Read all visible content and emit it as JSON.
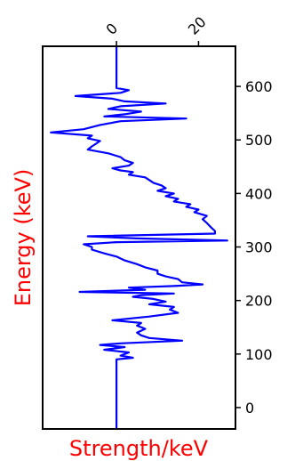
{
  "chart_data": {
    "type": "line",
    "orientation": "vertical",
    "title": "",
    "xlabel": "Strength/keV",
    "ylabel": "Energy (keV)",
    "label_color": "#ff0000",
    "line_color": "#0000ff",
    "xlim": [
      -18,
      29
    ],
    "ylim": [
      -40,
      675
    ],
    "x_ticks": [
      0,
      20
    ],
    "x_tick_labels": [
      "0",
      "20"
    ],
    "x_ticks_position": "top",
    "y_ticks": [
      0,
      100,
      200,
      300,
      400,
      500,
      600
    ],
    "y_tick_labels": [
      "0",
      "100",
      "200",
      "300",
      "400",
      "500",
      "600"
    ],
    "y_ticks_position": "right",
    "grid": false,
    "series": [
      {
        "points": [
          {
            "energy": -40,
            "strength": 0
          },
          {
            "energy": 90,
            "strength": 0
          },
          {
            "energy": 93,
            "strength": 4
          },
          {
            "energy": 97,
            "strength": 1
          },
          {
            "energy": 103,
            "strength": 3
          },
          {
            "energy": 108,
            "strength": -3
          },
          {
            "energy": 113,
            "strength": 2
          },
          {
            "energy": 117,
            "strength": -4
          },
          {
            "energy": 120,
            "strength": 1
          },
          {
            "energy": 125,
            "strength": 16
          },
          {
            "energy": 130,
            "strength": 8
          },
          {
            "energy": 135,
            "strength": 6
          },
          {
            "energy": 140,
            "strength": 5
          },
          {
            "energy": 147,
            "strength": 7
          },
          {
            "energy": 153,
            "strength": 5
          },
          {
            "energy": 158,
            "strength": 6
          },
          {
            "energy": 163,
            "strength": -1
          },
          {
            "energy": 170,
            "strength": 8
          },
          {
            "energy": 177,
            "strength": 15
          },
          {
            "energy": 183,
            "strength": 13
          },
          {
            "energy": 188,
            "strength": 14
          },
          {
            "energy": 193,
            "strength": 8
          },
          {
            "energy": 198,
            "strength": 12
          },
          {
            "energy": 203,
            "strength": 9
          },
          {
            "energy": 207,
            "strength": 4
          },
          {
            "energy": 210,
            "strength": 6
          },
          {
            "energy": 213,
            "strength": 14
          },
          {
            "energy": 216,
            "strength": -9
          },
          {
            "energy": 220,
            "strength": 7
          },
          {
            "energy": 224,
            "strength": 3
          },
          {
            "energy": 227,
            "strength": 14
          },
          {
            "energy": 230,
            "strength": 21
          },
          {
            "energy": 234,
            "strength": 16
          },
          {
            "energy": 240,
            "strength": 15
          },
          {
            "energy": 245,
            "strength": 12
          },
          {
            "energy": 250,
            "strength": 10
          },
          {
            "energy": 256,
            "strength": 10
          },
          {
            "energy": 262,
            "strength": 7
          },
          {
            "energy": 268,
            "strength": 5
          },
          {
            "energy": 275,
            "strength": 2
          },
          {
            "energy": 282,
            "strength": 0
          },
          {
            "energy": 288,
            "strength": -3
          },
          {
            "energy": 295,
            "strength": -6
          },
          {
            "energy": 300,
            "strength": -6
          },
          {
            "energy": 305,
            "strength": -8
          },
          {
            "energy": 309,
            "strength": 0
          },
          {
            "energy": 312,
            "strength": 27
          },
          {
            "energy": 316,
            "strength": 5
          },
          {
            "energy": 320,
            "strength": -7
          },
          {
            "energy": 325,
            "strength": 24
          },
          {
            "energy": 330,
            "strength": 24
          },
          {
            "energy": 337,
            "strength": 23
          },
          {
            "energy": 345,
            "strength": 22
          },
          {
            "energy": 352,
            "strength": 21
          },
          {
            "energy": 358,
            "strength": 22
          },
          {
            "energy": 365,
            "strength": 19
          },
          {
            "energy": 370,
            "strength": 20
          },
          {
            "energy": 375,
            "strength": 17
          },
          {
            "energy": 380,
            "strength": 18
          },
          {
            "energy": 385,
            "strength": 14
          },
          {
            "energy": 390,
            "strength": 15
          },
          {
            "energy": 395,
            "strength": 12
          },
          {
            "energy": 400,
            "strength": 14
          },
          {
            "energy": 405,
            "strength": 10
          },
          {
            "energy": 410,
            "strength": 12
          },
          {
            "energy": 415,
            "strength": 11
          },
          {
            "energy": 420,
            "strength": 9
          },
          {
            "energy": 425,
            "strength": 8
          },
          {
            "energy": 430,
            "strength": 7
          },
          {
            "energy": 435,
            "strength": 3
          },
          {
            "energy": 440,
            "strength": 4
          },
          {
            "energy": 443,
            "strength": 1
          },
          {
            "energy": 447,
            "strength": -1
          },
          {
            "energy": 452,
            "strength": 3
          },
          {
            "energy": 457,
            "strength": 4
          },
          {
            "energy": 462,
            "strength": 2
          },
          {
            "energy": 468,
            "strength": 1
          },
          {
            "energy": 475,
            "strength": -2
          },
          {
            "energy": 482,
            "strength": -7
          },
          {
            "energy": 488,
            "strength": -6
          },
          {
            "energy": 493,
            "strength": -5
          },
          {
            "energy": 498,
            "strength": -4
          },
          {
            "energy": 503,
            "strength": -7
          },
          {
            "energy": 508,
            "strength": -6
          },
          {
            "energy": 514,
            "strength": -16
          },
          {
            "energy": 520,
            "strength": -8
          },
          {
            "energy": 528,
            "strength": -4
          },
          {
            "energy": 535,
            "strength": 1
          },
          {
            "energy": 540,
            "strength": 17
          },
          {
            "energy": 544,
            "strength": -3
          },
          {
            "energy": 548,
            "strength": 2
          },
          {
            "energy": 553,
            "strength": 6
          },
          {
            "energy": 558,
            "strength": -2
          },
          {
            "energy": 563,
            "strength": 1
          },
          {
            "energy": 568,
            "strength": 12
          },
          {
            "energy": 572,
            "strength": 2
          },
          {
            "energy": 577,
            "strength": -1
          },
          {
            "energy": 582,
            "strength": -10
          },
          {
            "energy": 588,
            "strength": 1
          },
          {
            "energy": 593,
            "strength": 3
          },
          {
            "energy": 597,
            "strength": 0
          },
          {
            "energy": 675,
            "strength": 0
          }
        ]
      }
    ]
  }
}
